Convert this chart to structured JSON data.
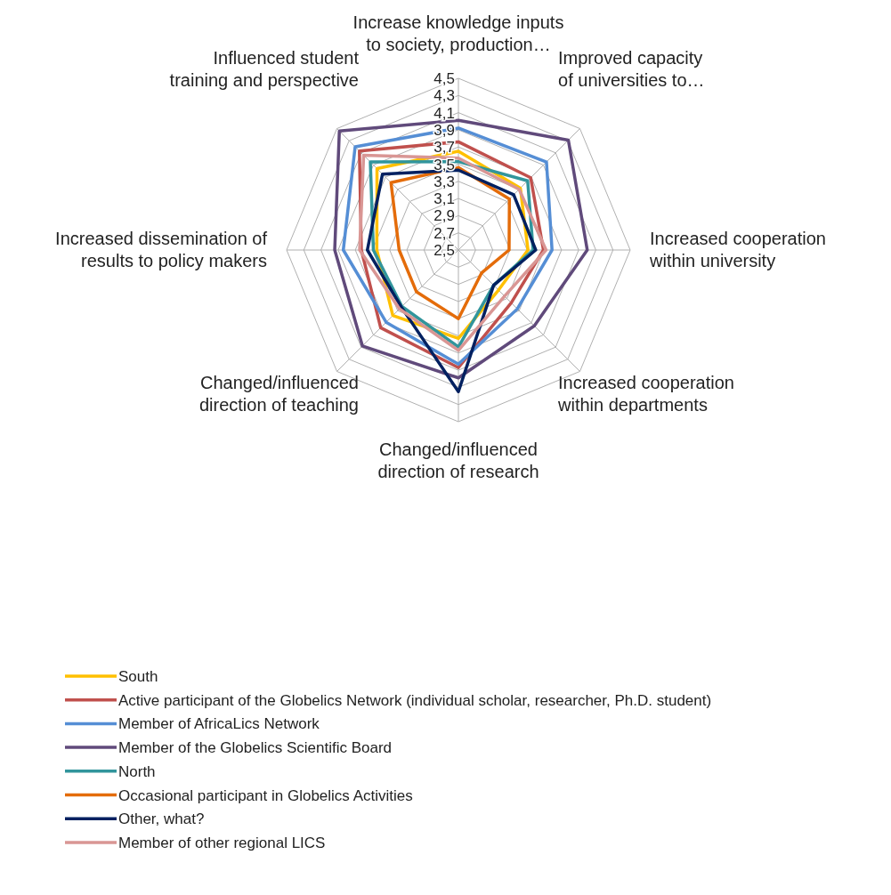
{
  "chart_data": {
    "type": "radar",
    "categories": [
      "Increase knowledge inputs to society, production…",
      "Improved capacity of universities to…",
      "Increased cooperation within university",
      "Increased cooperation within departments",
      "Changed/influenced direction of research",
      "Changed/influenced direction of teaching",
      "Increased dissemination of results to policy makers",
      "Influenced student training and perspective"
    ],
    "ylim": [
      2.5,
      4.5
    ],
    "yticks": [
      {
        "value": 2.5,
        "label": "2,5"
      },
      {
        "value": 2.7,
        "label": "2,7"
      },
      {
        "value": 2.9,
        "label": "2,9"
      },
      {
        "value": 3.1,
        "label": "3,1"
      },
      {
        "value": 3.3,
        "label": "3,3"
      },
      {
        "value": 3.5,
        "label": "3,5"
      },
      {
        "value": 3.7,
        "label": "3,7"
      },
      {
        "value": 3.9,
        "label": "3,9"
      },
      {
        "value": 4.1,
        "label": "4,1"
      },
      {
        "value": 4.3,
        "label": "4,3"
      },
      {
        "value": 4.5,
        "label": "4,5"
      }
    ],
    "grid": true,
    "legend": "bottom left",
    "marker": "none",
    "line_style": "solid",
    "series": [
      {
        "name": "South",
        "color": "#ffc000",
        "values": [
          3.65,
          3.52,
          3.31,
          3.16,
          3.53,
          3.58,
          3.45,
          3.84
        ]
      },
      {
        "name": "Active participant of the Globelics Network (individual scholar, researcher, Ph.D. student)",
        "color": "#c0504d",
        "values": [
          3.76,
          3.69,
          3.49,
          3.37,
          3.87,
          3.78,
          3.63,
          4.13
        ]
      },
      {
        "name": "Member of AfricaLics Network",
        "color": "#558ed5",
        "values": [
          3.92,
          3.95,
          3.59,
          3.47,
          3.83,
          3.69,
          3.84,
          4.2
        ]
      },
      {
        "name": "Member of the Globelics Scientific Board",
        "color": "#604a7b",
        "values": [
          4.01,
          4.31,
          4.0,
          3.75,
          3.99,
          4.08,
          3.94,
          4.46
        ]
      },
      {
        "name": "North",
        "color": "#31959c",
        "values": [
          3.53,
          3.64,
          3.37,
          3.08,
          3.63,
          3.43,
          3.49,
          3.95
        ]
      },
      {
        "name": "Occasional participant in Globelics Activities",
        "color": "#e46c0a",
        "values": [
          3.46,
          3.34,
          3.09,
          2.88,
          3.3,
          3.19,
          3.19,
          3.61
        ]
      },
      {
        "name": "Other, what?",
        "color": "#002060",
        "values": [
          3.43,
          3.41,
          3.4,
          3.08,
          4.15,
          3.44,
          3.56,
          3.75
        ]
      },
      {
        "name": "Member of other regional LICS",
        "color": "#d99694",
        "values": [
          3.57,
          3.5,
          3.52,
          3.26,
          3.67,
          3.47,
          3.65,
          4.06
        ]
      }
    ]
  }
}
